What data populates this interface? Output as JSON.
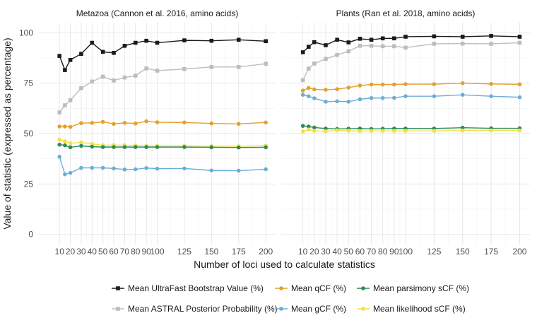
{
  "chart_data": {
    "type": "line",
    "xlabel": "Number of loci used to calculate statistics",
    "ylabel": "Value of statistic (expressed as percentage)",
    "ylim": [
      0,
      100
    ],
    "y_ticks": [
      0,
      25,
      50,
      75,
      100
    ],
    "xlim": [
      0,
      200
    ],
    "x_ticks": [
      10,
      20,
      30,
      40,
      50,
      60,
      70,
      80,
      90,
      100,
      125,
      150,
      175,
      200
    ],
    "x": [
      10,
      15,
      20,
      30,
      40,
      50,
      60,
      70,
      80,
      90,
      100,
      125,
      150,
      175,
      200
    ],
    "grid": true,
    "legend_position": "bottom",
    "series_styles": [
      {
        "name": "Mean UltraFast Bootstrap Value (%)",
        "color": "#1a1a1a",
        "marker": "square"
      },
      {
        "name": "Mean qCF (%)",
        "color": "#e69f2b",
        "marker": "circle"
      },
      {
        "name": "Mean parsimony sCF (%)",
        "color": "#2e8b57",
        "marker": "circle"
      },
      {
        "name": "Mean ASTRAL Posterior Probability (%)",
        "color": "#bdbdbd",
        "marker": "square"
      },
      {
        "name": "Mean gCF (%)",
        "color": "#6baed6",
        "marker": "circle"
      },
      {
        "name": "Mean likelihood sCF (%)",
        "color": "#f2e14a",
        "marker": "circle"
      }
    ],
    "panels": [
      {
        "title": "Metazoa (Cannon et al. 2016, amino acids)",
        "series": [
          {
            "name": "Mean UltraFast Bootstrap Value (%)",
            "values": [
              88.5,
              81.5,
              86.5,
              89.5,
              95,
              90.5,
              90,
              93.5,
              95,
              96,
              95,
              96.2,
              96,
              96.5,
              95.8
            ]
          },
          {
            "name": "Mean ASTRAL Posterior Probability (%)",
            "values": [
              60.5,
              64,
              66.5,
              72.5,
              75.8,
              78.2,
              76.3,
              77.8,
              78.7,
              82.3,
              81.2,
              82,
              83,
              83,
              84.6
            ]
          },
          {
            "name": "Mean qCF (%)",
            "values": [
              53.5,
              53.5,
              53.3,
              55.2,
              55.3,
              55.8,
              54.8,
              55.3,
              55,
              56.1,
              55.6,
              55.5,
              55,
              54.8,
              55.5
            ]
          },
          {
            "name": "Mean likelihood sCF (%)",
            "values": [
              47,
              46.2,
              45.2,
              45.6,
              44.9,
              44.2,
              44.3,
              44.2,
              44.1,
              43.9,
              43.9,
              43.9,
              43.8,
              43.7,
              44
            ]
          },
          {
            "name": "Mean parsimony sCF (%)",
            "values": [
              44.5,
              44.2,
              43.2,
              43.9,
              43.5,
              43.3,
              43.3,
              43.3,
              43.3,
              43.3,
              43.3,
              43.3,
              43.2,
              43.1,
              43.2
            ]
          },
          {
            "name": "Mean gCF (%)",
            "values": [
              38.5,
              29.8,
              30.5,
              33,
              33,
              33,
              32.7,
              32.2,
              32.3,
              32.9,
              32.6,
              32.7,
              31.7,
              31.6,
              32.3
            ]
          }
        ]
      },
      {
        "title": "Plants (Ran et al. 2018, amino acids)",
        "series": [
          {
            "name": "Mean UltraFast Bootstrap Value (%)",
            "values": [
              90.3,
              93,
              95.3,
              93.8,
              96.5,
              95.2,
              97,
              96.5,
              97.2,
              97.2,
              98,
              98.2,
              98,
              98.4,
              98
            ]
          },
          {
            "name": "Mean ASTRAL Posterior Probability (%)",
            "values": [
              76.5,
              82.2,
              84.7,
              87,
              89,
              90.8,
              93.5,
              93.5,
              93.3,
              93.3,
              92.6,
              94.5,
              94.6,
              94.5,
              95
            ]
          },
          {
            "name": "Mean qCF (%)",
            "values": [
              71.3,
              72.6,
              71.9,
              71.7,
              72,
              72.8,
              73.8,
              74.3,
              74.3,
              74.3,
              74.5,
              74.5,
              75,
              74.6,
              74.4
            ]
          },
          {
            "name": "Mean gCF (%)",
            "values": [
              69.2,
              68.5,
              67.5,
              65.8,
              66,
              65.8,
              67,
              67.6,
              67.6,
              67.7,
              68.5,
              68.5,
              69.2,
              68.5,
              68
            ]
          },
          {
            "name": "Mean parsimony sCF (%)",
            "values": [
              53.8,
              53.5,
              53,
              52.5,
              52.3,
              52.4,
              52.5,
              52.3,
              52.4,
              52.5,
              52.5,
              52.5,
              52.9,
              52.6,
              52.6
            ]
          },
          {
            "name": "Mean likelihood sCF (%)",
            "values": [
              51,
              52,
              51.3,
              51.1,
              51.6,
              51.4,
              51.2,
              51.3,
              51.3,
              51.3,
              51.3,
              51.3,
              51.5,
              51.5,
              51.5
            ]
          }
        ]
      }
    ]
  }
}
